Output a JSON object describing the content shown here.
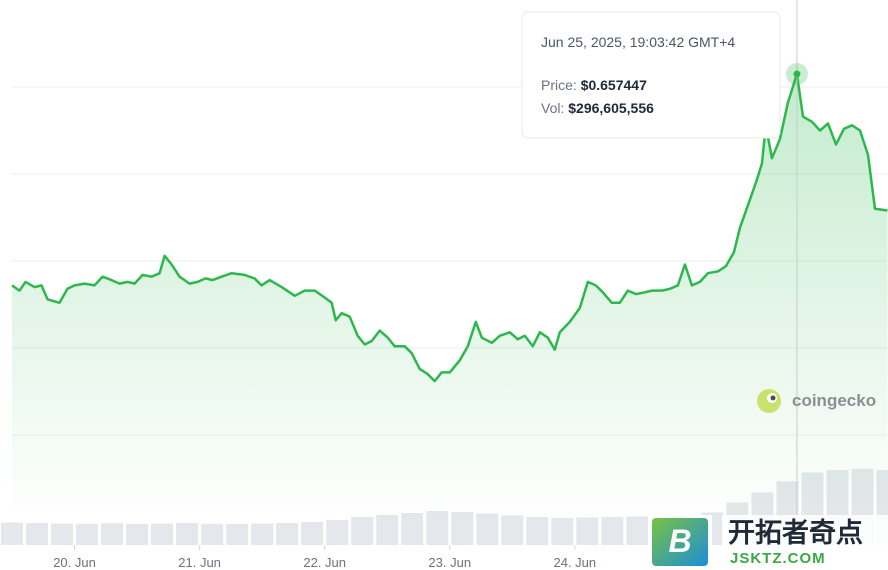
{
  "chart_data": {
    "type": "line",
    "x": [
      19.5,
      19.56,
      19.608,
      19.68,
      19.736,
      19.784,
      19.88,
      19.944,
      20,
      20.08,
      20.16,
      20.224,
      20.296,
      20.36,
      20.424,
      20.48,
      20.544,
      20.616,
      20.68,
      20.72,
      20.776,
      20.84,
      20.92,
      20.984,
      21.048,
      21.104,
      21.176,
      21.256,
      21.36,
      21.44,
      21.496,
      21.56,
      21.656,
      21.76,
      21.84,
      21.92,
      22,
      22.056,
      22.088,
      22.136,
      22.2,
      22.264,
      22.32,
      22.376,
      22.44,
      22.504,
      22.56,
      22.64,
      22.696,
      22.76,
      22.824,
      22.88,
      22.936,
      23,
      23.08,
      23.144,
      23.208,
      23.256,
      23.336,
      23.4,
      23.48,
      23.544,
      23.6,
      23.664,
      23.72,
      23.784,
      23.84,
      23.88,
      23.96,
      24.04,
      24.104,
      24.168,
      24.224,
      24.296,
      24.36,
      24.424,
      24.488,
      24.56,
      24.616,
      24.696,
      24.76,
      24.824,
      24.88,
      24.936,
      25,
      25.064,
      25.144,
      25.208,
      25.272,
      25.32,
      25.384,
      25.448,
      25.496,
      25.528,
      25.576,
      25.64,
      25.704,
      25.776,
      25.824,
      25.896,
      25.96,
      26.024,
      26.088,
      26.152,
      26.216,
      26.28,
      26.344,
      26.4,
      26.5
    ],
    "values": [
      0.536,
      0.533,
      0.538,
      0.535,
      0.536,
      0.528,
      0.526,
      0.534,
      0.536,
      0.537,
      0.536,
      0.541,
      0.539,
      0.537,
      0.538,
      0.537,
      0.542,
      0.541,
      0.543,
      0.553,
      0.548,
      0.541,
      0.537,
      0.538,
      0.54,
      0.539,
      0.541,
      0.543,
      0.542,
      0.54,
      0.536,
      0.539,
      0.535,
      0.53,
      0.533,
      0.533,
      0.529,
      0.526,
      0.516,
      0.52,
      0.518,
      0.507,
      0.502,
      0.504,
      0.51,
      0.506,
      0.501,
      0.501,
      0.497,
      0.488,
      0.485,
      0.481,
      0.486,
      0.486,
      0.493,
      0.501,
      0.515,
      0.506,
      0.503,
      0.507,
      0.509,
      0.505,
      0.507,
      0.501,
      0.509,
      0.506,
      0.499,
      0.509,
      0.515,
      0.523,
      0.538,
      0.536,
      0.532,
      0.526,
      0.526,
      0.533,
      0.531,
      0.532,
      0.533,
      0.533,
      0.534,
      0.536,
      0.548,
      0.536,
      0.538,
      0.543,
      0.544,
      0.547,
      0.555,
      0.569,
      0.582,
      0.595,
      0.606,
      0.628,
      0.609,
      0.62,
      0.641,
      0.657447,
      0.633,
      0.63,
      0.625,
      0.629,
      0.617,
      0.626,
      0.628,
      0.625,
      0.611,
      0.58,
      0.579
    ],
    "color": "#2db84d",
    "xlim": [
      19.5,
      26.5
    ],
    "ylim": [
      0.4,
      0.7
    ],
    "xticks": [
      {
        "value": 20,
        "label": "20. Jun"
      },
      {
        "value": 21,
        "label": "21. Jun"
      },
      {
        "value": 22,
        "label": "22. Jun"
      },
      {
        "value": 23,
        "label": "23. Jun"
      },
      {
        "value": 24,
        "label": "24. Jun"
      }
    ],
    "grid_values": [
      0.45,
      0.5,
      0.55,
      0.6,
      0.65
    ],
    "volume": {
      "x": [
        19.5,
        19.7,
        19.9,
        20.1,
        20.3,
        20.5,
        20.7,
        20.9,
        21.1,
        21.3,
        21.5,
        21.7,
        21.9,
        22.1,
        22.3,
        22.5,
        22.7,
        22.9,
        23.1,
        23.3,
        23.5,
        23.7,
        23.9,
        24.1,
        24.3,
        24.5,
        24.7,
        24.9,
        25.1,
        25.3,
        25.5,
        25.7,
        25.9,
        26.1,
        26.3,
        26.5
      ],
      "values": [
        90000000,
        88000000,
        86000000,
        85000000,
        87000000,
        84000000,
        86000000,
        88000000,
        85000000,
        84000000,
        86000000,
        88000000,
        92000000,
        100000000,
        112000000,
        120000000,
        128000000,
        136000000,
        132000000,
        126000000,
        118000000,
        112000000,
        108000000,
        110000000,
        112000000,
        114000000,
        112000000,
        116000000,
        130000000,
        170000000,
        210000000,
        255000000,
        290000000,
        300000000,
        305000000,
        300000000
      ],
      "color": "#e4e7eb",
      "lim": [
        0,
        400000000
      ]
    },
    "tooltip": {
      "date": "Jun 25, 2025, 19:03:42 GMT+4",
      "price_label": "Price:",
      "price": "$0.657447",
      "vol_label": "Vol:",
      "vol": "$296,605,556"
    },
    "source": "coingecko",
    "watermark": {
      "logo": "B",
      "title": "开拓者奇点",
      "site": "JSKTZ.COM"
    }
  }
}
